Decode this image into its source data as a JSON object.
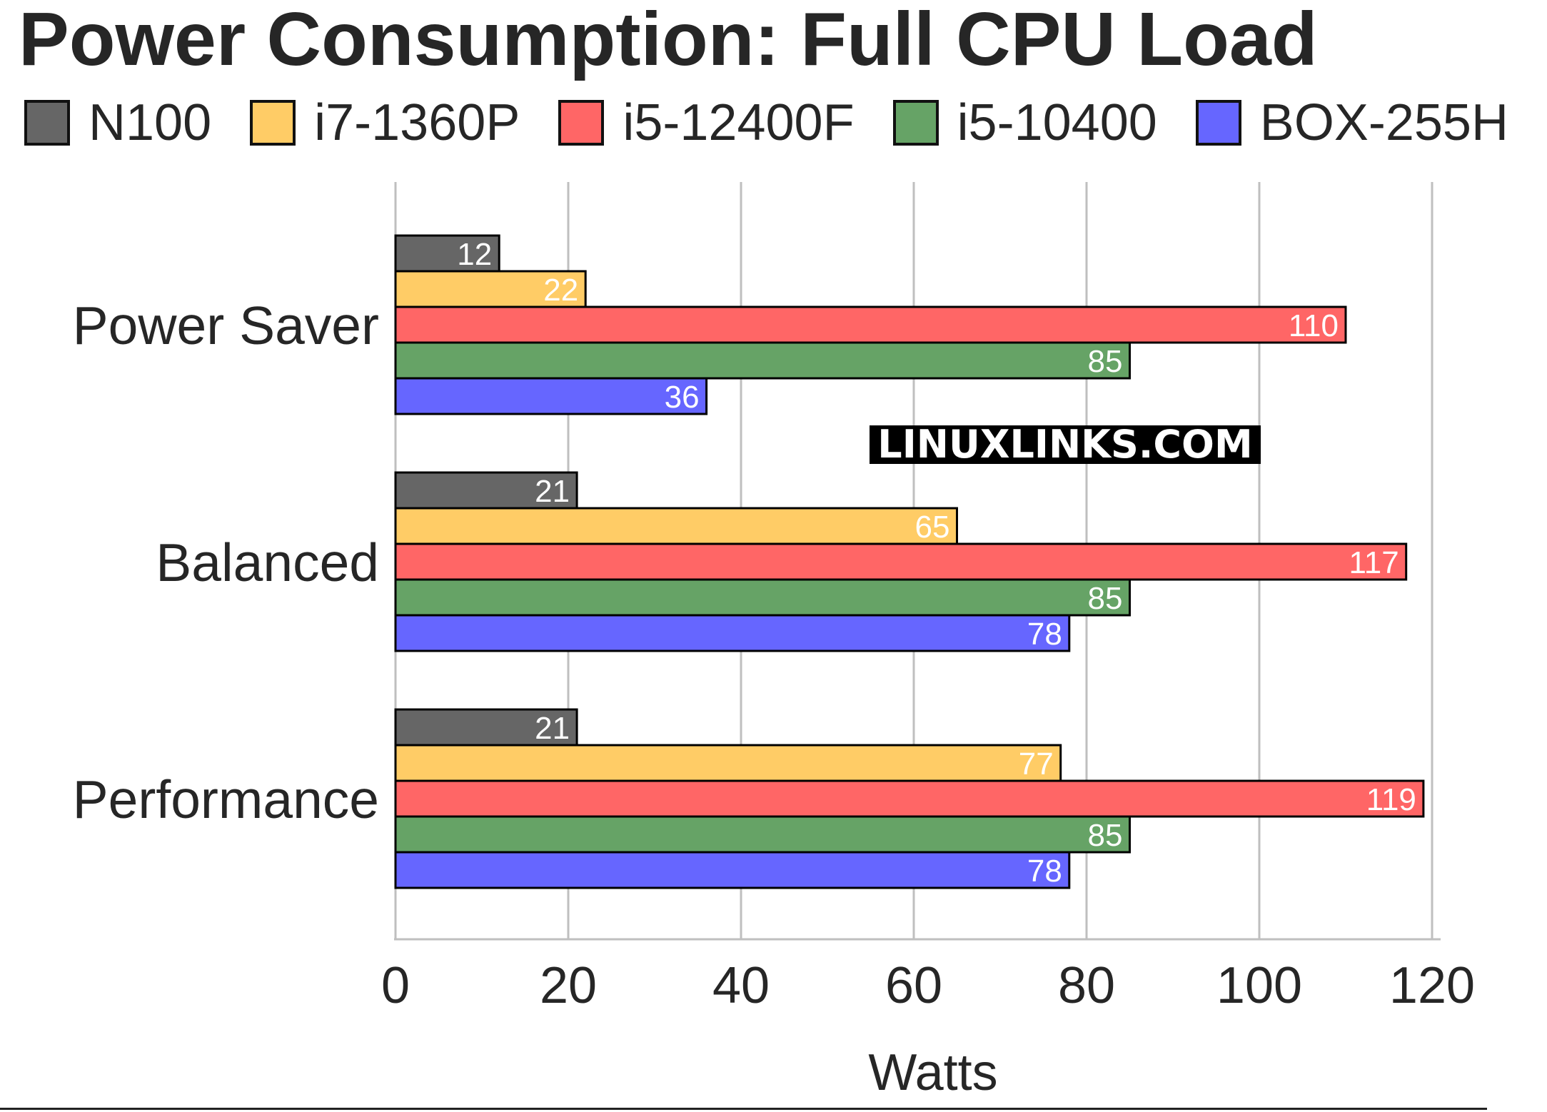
{
  "chart_data": {
    "type": "bar",
    "orientation": "horizontal",
    "title": "Power Consumption: Full CPU Load",
    "xlabel": "Watts",
    "ylabel": "",
    "xlim": [
      0,
      120
    ],
    "xticks": [
      0,
      20,
      40,
      60,
      80,
      100,
      120
    ],
    "grid": "vertical",
    "legend_position": "top",
    "categories": [
      "Power Saver",
      "Balanced",
      "Performance"
    ],
    "series": [
      {
        "name": "N100",
        "color": "#666666",
        "values": [
          12,
          21,
          21
        ]
      },
      {
        "name": "i7-1360P",
        "color": "#ffcc66",
        "values": [
          22,
          65,
          77
        ]
      },
      {
        "name": "i5-12400F",
        "color": "#ff6666",
        "values": [
          110,
          117,
          119
        ]
      },
      {
        "name": "i5-10400",
        "color": "#66a366",
        "values": [
          85,
          85,
          85
        ]
      },
      {
        "name": "BOX-255H",
        "color": "#6666ff",
        "values": [
          36,
          78,
          78
        ]
      }
    ]
  },
  "watermark": "LINUXLINKS.COM"
}
